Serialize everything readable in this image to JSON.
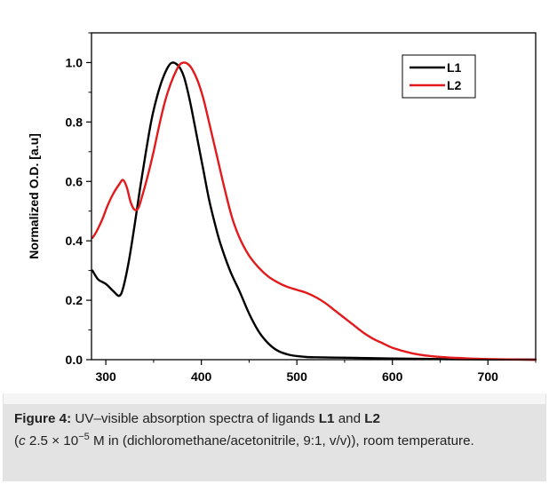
{
  "figure": {
    "caption": {
      "label": "Figure 4:",
      "text_pre": " UV–visible absorption spectra of ligands ",
      "l1": "L1",
      "and": " and ",
      "l2": "L2",
      "c": "c",
      "conc_pre": " 2.5 × 10",
      "exp": "−5",
      "conc_post": " M in (dichloromethane/acetonitrile, 9:1, v/v)), room temperature.",
      "open_paren": "("
    }
  },
  "colors": {
    "L1": "#000000",
    "L2": "#e31a1c"
  },
  "chart_data": {
    "type": "line",
    "title": "",
    "xlabel": "",
    "ylabel": "Normalized O.D. [a.u]",
    "xlim": [
      285,
      750
    ],
    "ylim": [
      0,
      1.1
    ],
    "x_ticks": [
      300,
      400,
      500,
      600,
      700
    ],
    "x_tick_labels": [
      "300",
      "400",
      "500",
      "600",
      "700"
    ],
    "y_ticks": [
      0.0,
      0.2,
      0.4,
      0.6,
      0.8,
      1.0
    ],
    "y_tick_labels": [
      "0.0",
      "0.2",
      "0.4",
      "0.6",
      "0.8",
      "1.0"
    ],
    "legend_position": "top-right",
    "series": [
      {
        "name": "L1",
        "color": "#000000",
        "x": [
          286,
          292,
          300,
          308,
          314,
          318,
          324,
          330,
          336,
          342,
          348,
          354,
          360,
          366,
          370,
          374,
          378,
          382,
          386,
          390,
          396,
          402,
          408,
          414,
          420,
          430,
          440,
          450,
          460,
          470,
          480,
          490,
          500,
          510,
          520,
          540,
          560,
          580,
          600,
          650,
          700,
          750
        ],
        "y": [
          0.3,
          0.27,
          0.255,
          0.23,
          0.215,
          0.24,
          0.33,
          0.45,
          0.58,
          0.7,
          0.81,
          0.89,
          0.95,
          0.99,
          1.0,
          0.995,
          0.98,
          0.95,
          0.9,
          0.84,
          0.74,
          0.64,
          0.54,
          0.46,
          0.39,
          0.3,
          0.23,
          0.155,
          0.095,
          0.055,
          0.03,
          0.018,
          0.012,
          0.009,
          0.008,
          0.007,
          0.006,
          0.005,
          0.004,
          0.002,
          0.001,
          0.0
        ]
      },
      {
        "name": "L2",
        "color": "#e31a1c",
        "x": [
          286,
          290,
          296,
          302,
          308,
          314,
          318,
          322,
          326,
          330,
          334,
          338,
          344,
          350,
          356,
          362,
          368,
          374,
          378,
          382,
          386,
          390,
          396,
          402,
          408,
          416,
          424,
          432,
          440,
          450,
          460,
          470,
          480,
          490,
          500,
          510,
          520,
          530,
          540,
          550,
          560,
          570,
          580,
          590,
          600,
          620,
          640,
          660,
          680,
          700,
          720,
          750
        ],
        "y": [
          0.41,
          0.43,
          0.47,
          0.52,
          0.56,
          0.59,
          0.605,
          0.58,
          0.53,
          0.505,
          0.51,
          0.55,
          0.62,
          0.7,
          0.79,
          0.87,
          0.93,
          0.975,
          0.995,
          1.0,
          0.995,
          0.98,
          0.94,
          0.88,
          0.8,
          0.69,
          0.58,
          0.48,
          0.41,
          0.35,
          0.31,
          0.28,
          0.26,
          0.245,
          0.235,
          0.225,
          0.21,
          0.19,
          0.165,
          0.14,
          0.115,
          0.09,
          0.07,
          0.055,
          0.04,
          0.022,
          0.012,
          0.007,
          0.004,
          0.002,
          0.001,
          0.0
        ]
      }
    ]
  }
}
